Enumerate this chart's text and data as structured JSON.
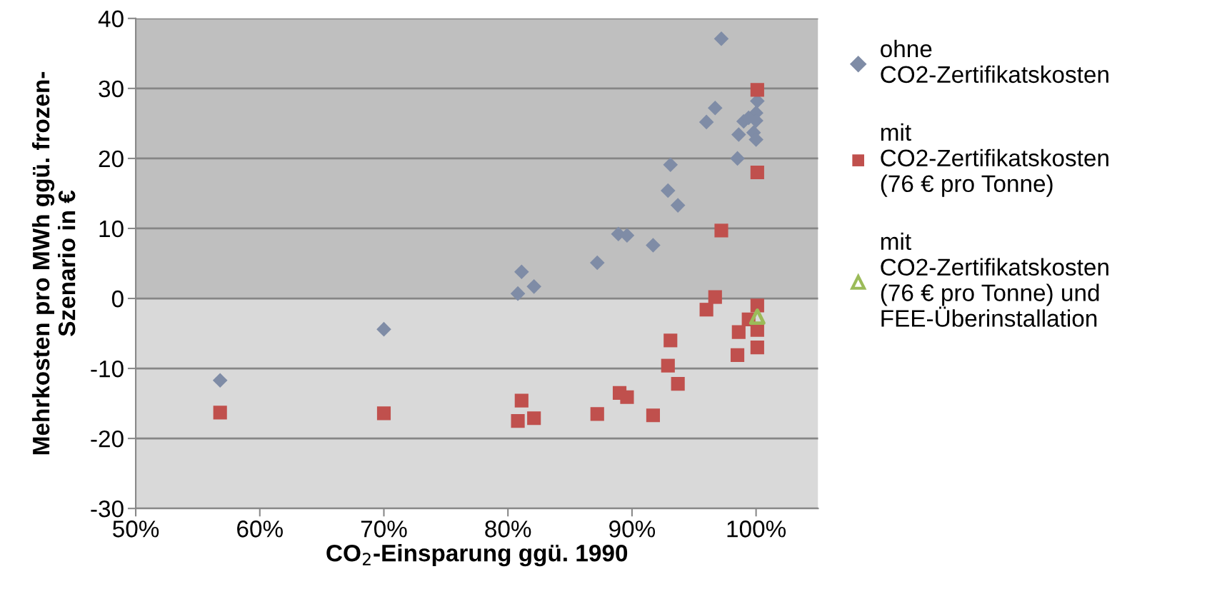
{
  "chart_data": {
    "type": "scatter",
    "xlabel": "CO$_{2}$-Einsparung ggü. 1990",
    "ylabel": "Mehrkosten pro MWh ggü. frozen-\nSzenario in €",
    "xlim": [
      50,
      105
    ],
    "xticks": [
      {
        "value": 50,
        "label": "50%"
      },
      {
        "value": 60,
        "label": "60%"
      },
      {
        "value": 70,
        "label": "70%"
      },
      {
        "value": 80,
        "label": "80%"
      },
      {
        "value": 90,
        "label": "90%"
      },
      {
        "value": 100,
        "label": "100%"
      }
    ],
    "ylim": [
      -30,
      40
    ],
    "yticks": [
      -30,
      -20,
      -10,
      0,
      10,
      20,
      30,
      40
    ],
    "grid": "y",
    "legend": "right",
    "bands": [
      {
        "axis": "y",
        "from": 0,
        "to": 40,
        "color": "#bfbfbf"
      },
      {
        "axis": "y",
        "from": -30,
        "to": 0,
        "color": "#d9d9d9"
      }
    ],
    "series": [
      {
        "name": "ohne\nCO2-Zertifikatskosten",
        "color": "#7f8ca6",
        "marker": "diamond",
        "x": [
          56.8,
          70.0,
          81.1,
          80.8,
          82.1,
          87.2,
          88.9,
          89.6,
          91.7,
          97.2,
          100.1,
          100.0,
          96.7,
          96.0,
          99.0,
          99.4,
          100.0,
          98.6,
          99.8,
          100.0,
          98.5,
          93.1,
          92.9,
          93.7
        ],
        "values": [
          -11.7,
          -4.4,
          3.8,
          0.7,
          1.7,
          5.1,
          9.2,
          9.0,
          7.6,
          37.1,
          28.2,
          26.5,
          27.2,
          25.2,
          25.3,
          25.8,
          25.4,
          23.4,
          23.7,
          22.7,
          20.0,
          19.1,
          15.4,
          13.3
        ]
      },
      {
        "name": "mit\nCO2-Zertifikatskosten\n(76 € pro Tonne)",
        "color": "#c0504d",
        "marker": "square",
        "x": [
          56.8,
          70.0,
          81.1,
          80.8,
          82.1,
          87.2,
          89.0,
          89.6,
          91.7,
          100.1,
          100.1,
          97.2,
          96.7,
          96.0,
          100.1,
          99.4,
          98.6,
          100.1,
          100.1,
          98.5,
          93.1,
          92.9,
          93.7
        ],
        "values": [
          -16.3,
          -16.4,
          -14.6,
          -17.5,
          -17.1,
          -16.5,
          -13.5,
          -14.1,
          -16.7,
          29.8,
          18.0,
          9.7,
          0.2,
          -1.6,
          -1.0,
          -3.0,
          -4.8,
          -4.5,
          -7.0,
          -8.1,
          -6.0,
          -9.6,
          -12.2
        ]
      },
      {
        "name": "mit\nCO2-Zertifikatskosten\n(76 € pro Tonne) und\nFEE-Überinstallation",
        "color": "#9bbb59",
        "marker": "triangle",
        "x": [
          100.1
        ],
        "values": [
          -2.6
        ]
      }
    ]
  }
}
